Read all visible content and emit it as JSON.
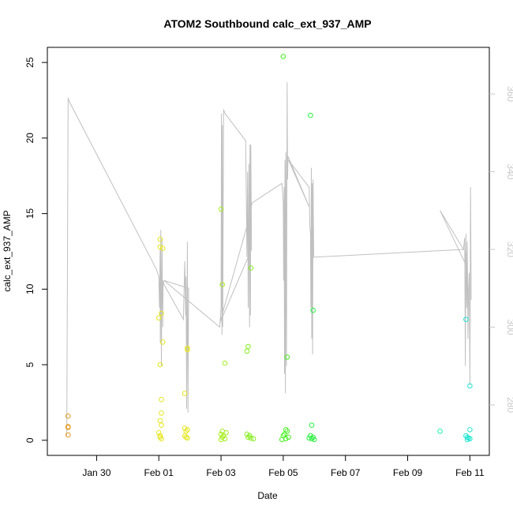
{
  "chart_data": {
    "type": "scatter",
    "title": "ATOM2 Southbound calc_ext_937_AMP",
    "xlabel": "Date",
    "ylabel": "calc_ext_937_AMP",
    "x_ticks": [
      "Jan 30",
      "Feb 01",
      "Feb 03",
      "Feb 05",
      "Feb 07",
      "Feb 09",
      "Feb 11"
    ],
    "x_tick_dates": [
      "2023-01-30",
      "2023-02-01",
      "2023-02-03",
      "2023-02-05",
      "2023-02-07",
      "2023-02-09",
      "2023-02-11"
    ],
    "xlim": [
      "2023-01-28 10:00",
      "2023-02-11 15:00"
    ],
    "ylim": [
      -1,
      26
    ],
    "y_ticks": [
      0,
      5,
      10,
      15,
      20,
      25
    ],
    "y2_ticks": [
      280,
      300,
      320,
      340,
      360
    ],
    "y2lim": [
      267,
      372
    ],
    "grid": false,
    "points": [
      {
        "x": "2023-01-29 02:00",
        "y": 1.6,
        "color": "#e69a1e"
      },
      {
        "x": "2023-01-29 02:00",
        "y": 0.9,
        "color": "#e69a1e"
      },
      {
        "x": "2023-01-29 02:00",
        "y": 0.85,
        "color": "#e69a1e"
      },
      {
        "x": "2023-01-29 02:00",
        "y": 0.35,
        "color": "#e69a1e"
      },
      {
        "x": "2023-02-01 00:00",
        "y": 8.1,
        "color": "#e6e61e"
      },
      {
        "x": "2023-02-01 01:00",
        "y": 13.3,
        "color": "#e6e61e"
      },
      {
        "x": "2023-02-01 01:00",
        "y": 12.8,
        "color": "#e6e61e"
      },
      {
        "x": "2023-02-01 02:00",
        "y": 8.4,
        "color": "#e6e61e"
      },
      {
        "x": "2023-02-01 03:00",
        "y": 12.7,
        "color": "#e6e61e"
      },
      {
        "x": "2023-02-01 03:00",
        "y": 6.5,
        "color": "#e6e61e"
      },
      {
        "x": "2023-02-01 01:00",
        "y": 5.0,
        "color": "#e6e61e"
      },
      {
        "x": "2023-02-01 02:00",
        "y": 2.7,
        "color": "#e6e61e"
      },
      {
        "x": "2023-02-01 02:00",
        "y": 1.8,
        "color": "#e6e61e"
      },
      {
        "x": "2023-02-01 01:00",
        "y": 1.3,
        "color": "#e6e61e"
      },
      {
        "x": "2023-02-01 02:00",
        "y": 1.0,
        "color": "#e6e61e"
      },
      {
        "x": "2023-02-01 00:00",
        "y": 0.5,
        "color": "#e6e61e"
      },
      {
        "x": "2023-02-01 01:00",
        "y": 0.3,
        "color": "#e6e61e"
      },
      {
        "x": "2023-02-01 01:00",
        "y": 0.2,
        "color": "#e6e61e"
      },
      {
        "x": "2023-02-01 02:00",
        "y": 0.1,
        "color": "#e6e61e"
      },
      {
        "x": "2023-02-01 20:00",
        "y": 3.1,
        "color": "#e6e61e"
      },
      {
        "x": "2023-02-01 22:00",
        "y": 6.0,
        "color": "#e6e61e"
      },
      {
        "x": "2023-02-01 22:00",
        "y": 6.1,
        "color": "#e6e61e"
      },
      {
        "x": "2023-02-01 20:00",
        "y": 0.8,
        "color": "#e6e61e"
      },
      {
        "x": "2023-02-01 21:00",
        "y": 0.6,
        "color": "#e6e61e"
      },
      {
        "x": "2023-02-01 22:00",
        "y": 0.7,
        "color": "#e6e61e"
      },
      {
        "x": "2023-02-01 20:00",
        "y": 0.3,
        "color": "#e6e61e"
      },
      {
        "x": "2023-02-01 21:00",
        "y": 0.2,
        "color": "#e6e61e"
      },
      {
        "x": "2023-02-01 22:00",
        "y": 0.15,
        "color": "#e6e61e"
      },
      {
        "x": "2023-02-03 00:00",
        "y": 15.3,
        "color": "#a6ee1e"
      },
      {
        "x": "2023-02-03 01:00",
        "y": 10.3,
        "color": "#a6ee1e"
      },
      {
        "x": "2023-02-03 03:00",
        "y": 5.1,
        "color": "#a6ee1e"
      },
      {
        "x": "2023-02-03 01:00",
        "y": 0.6,
        "color": "#a6ee1e"
      },
      {
        "x": "2023-02-03 04:00",
        "y": 0.5,
        "color": "#a6ee1e"
      },
      {
        "x": "2023-02-03 00:00",
        "y": 0.4,
        "color": "#a6ee1e"
      },
      {
        "x": "2023-02-03 02:00",
        "y": 0.3,
        "color": "#a6ee1e"
      },
      {
        "x": "2023-02-03 01:00",
        "y": 0.2,
        "color": "#a6ee1e"
      },
      {
        "x": "2023-02-03 03:00",
        "y": 0.1,
        "color": "#a6ee1e"
      },
      {
        "x": "2023-02-03 00:00",
        "y": 0.05,
        "color": "#a6ee1e"
      },
      {
        "x": "2023-02-03 20:00",
        "y": 5.9,
        "color": "#86ee1e"
      },
      {
        "x": "2023-02-03 21:00",
        "y": 6.2,
        "color": "#86ee1e"
      },
      {
        "x": "2023-02-03 23:00",
        "y": 11.4,
        "color": "#86ee1e"
      },
      {
        "x": "2023-02-03 20:00",
        "y": 0.4,
        "color": "#86ee1e"
      },
      {
        "x": "2023-02-03 22:00",
        "y": 0.3,
        "color": "#86ee1e"
      },
      {
        "x": "2023-02-03 21:00",
        "y": 0.2,
        "color": "#86ee1e"
      },
      {
        "x": "2023-02-03 23:00",
        "y": 0.15,
        "color": "#86ee1e"
      },
      {
        "x": "2023-02-04 01:00",
        "y": 0.1,
        "color": "#86ee1e"
      },
      {
        "x": "2023-02-05 00:00",
        "y": 25.4,
        "color": "#46f01e"
      },
      {
        "x": "2023-02-05 03:00",
        "y": 5.5,
        "color": "#46f01e"
      },
      {
        "x": "2023-02-05 02:00",
        "y": 0.7,
        "color": "#46f01e"
      },
      {
        "x": "2023-02-05 03:00",
        "y": 0.6,
        "color": "#46f01e"
      },
      {
        "x": "2023-02-05 01:00",
        "y": 0.4,
        "color": "#46f01e"
      },
      {
        "x": "2023-02-05 00:00",
        "y": 0.3,
        "color": "#46f01e"
      },
      {
        "x": "2023-02-05 04:00",
        "y": 0.2,
        "color": "#46f01e"
      },
      {
        "x": "2023-02-05 02:00",
        "y": 0.1,
        "color": "#46f01e"
      },
      {
        "x": "2023-02-04 23:00",
        "y": 0.05,
        "color": "#46f01e"
      },
      {
        "x": "2023-02-05 21:00",
        "y": 21.5,
        "color": "#26f03e"
      },
      {
        "x": "2023-02-05 23:00",
        "y": 8.6,
        "color": "#26f03e"
      },
      {
        "x": "2023-02-05 22:00",
        "y": 1.0,
        "color": "#26f03e"
      },
      {
        "x": "2023-02-05 21:00",
        "y": 0.3,
        "color": "#26f03e"
      },
      {
        "x": "2023-02-05 23:00",
        "y": 0.2,
        "color": "#26f03e"
      },
      {
        "x": "2023-02-05 20:00",
        "y": 0.15,
        "color": "#26f03e"
      },
      {
        "x": "2023-02-05 22:00",
        "y": 0.1,
        "color": "#26f03e"
      },
      {
        "x": "2023-02-06 00:00",
        "y": 0.05,
        "color": "#26f03e"
      },
      {
        "x": "2023-02-10 01:00",
        "y": 0.6,
        "color": "#1ef0a6"
      },
      {
        "x": "2023-02-10 21:00",
        "y": 8.0,
        "color": "#1ee6d0"
      },
      {
        "x": "2023-02-11 00:00",
        "y": 3.6,
        "color": "#1ee6d0"
      },
      {
        "x": "2023-02-11 00:00",
        "y": 0.7,
        "color": "#1ee6d0"
      },
      {
        "x": "2023-02-10 21:00",
        "y": 0.3,
        "color": "#1ee6d0"
      },
      {
        "x": "2023-02-10 22:00",
        "y": 0.2,
        "color": "#1ee6d0"
      },
      {
        "x": "2023-02-10 23:00",
        "y": 0.15,
        "color": "#1ee6d0"
      },
      {
        "x": "2023-02-11 00:00",
        "y": 0.1,
        "color": "#1ee6d0"
      },
      {
        "x": "2023-02-10 22:00",
        "y": 0.05,
        "color": "#1ee6d0"
      }
    ],
    "secondary_line": {
      "color": "#c0c0c0",
      "axis": "right",
      "points": [
        [
          "2023-01-29 01:00",
          272
        ],
        [
          "2023-01-29 02:00",
          359
        ],
        [
          "2023-01-29 03:00",
          358
        ],
        [
          "2023-01-31 22:00",
          315
        ],
        [
          "2023-02-01 00:00",
          313
        ],
        [
          "2023-02-01 00:30",
          305
        ],
        [
          "2023-02-01 01:00",
          320
        ],
        [
          "2023-02-01 01:10",
          296
        ],
        [
          "2023-02-01 01:30",
          325
        ],
        [
          "2023-02-01 02:00",
          290
        ],
        [
          "2023-02-01 02:30",
          323
        ],
        [
          "2023-02-01 03:00",
          300
        ],
        [
          "2023-02-01 03:20",
          312
        ],
        [
          "2023-02-01 04:00",
          311
        ],
        [
          "2023-02-01 19:00",
          302
        ],
        [
          "2023-02-01 20:00",
          317
        ],
        [
          "2023-02-01 20:40",
          303
        ],
        [
          "2023-02-01 21:00",
          313
        ],
        [
          "2023-02-01 21:30",
          279
        ],
        [
          "2023-02-01 22:00",
          322
        ],
        [
          "2023-02-01 22:30",
          278
        ],
        [
          "2023-02-01 23:00",
          310
        ],
        [
          "2023-02-01 04:00",
          312
        ],
        [
          "2023-02-02 23:00",
          300
        ],
        [
          "2023-02-03 00:00",
          305
        ],
        [
          "2023-02-03 00:20",
          355
        ],
        [
          "2023-02-03 00:40",
          298
        ],
        [
          "2023-02-03 01:00",
          352
        ],
        [
          "2023-02-03 01:20",
          300
        ],
        [
          "2023-02-03 02:00",
          356
        ],
        [
          "2023-02-03 03:00",
          355
        ],
        [
          "2023-02-03 19:00",
          348
        ],
        [
          "2023-02-03 20:00",
          318
        ],
        [
          "2023-02-03 20:30",
          340
        ],
        [
          "2023-02-03 21:00",
          305
        ],
        [
          "2023-02-03 21:30",
          342
        ],
        [
          "2023-02-03 22:00",
          300
        ],
        [
          "2023-02-03 22:20",
          347
        ],
        [
          "2023-02-03 22:40",
          303
        ],
        [
          "2023-02-03 23:00",
          347
        ],
        [
          "2023-02-03 23:30",
          320
        ],
        [
          "2023-02-02 23:00",
          301
        ],
        [
          "2023-02-03 20:00",
          326
        ],
        [
          "2023-02-04 00:00",
          332
        ],
        [
          "2023-02-04 23:00",
          337
        ],
        [
          "2023-02-05 00:00",
          332
        ],
        [
          "2023-02-05 00:20",
          312
        ],
        [
          "2023-02-05 00:40",
          336
        ],
        [
          "2023-02-05 01:00",
          288
        ],
        [
          "2023-02-05 01:20",
          343
        ],
        [
          "2023-02-05 01:40",
          283
        ],
        [
          "2023-02-05 02:00",
          345
        ],
        [
          "2023-02-05 02:30",
          290
        ],
        [
          "2023-02-05 03:00",
          363
        ],
        [
          "2023-02-05 03:20",
          338
        ],
        [
          "2023-02-05 03:40",
          344
        ],
        [
          "2023-02-05 20:00",
          331
        ],
        [
          "2023-02-05 04:00",
          343
        ],
        [
          "2023-02-05 20:00",
          336
        ],
        [
          "2023-02-05 20:30",
          326
        ],
        [
          "2023-02-05 21:00",
          324
        ],
        [
          "2023-02-05 21:20",
          305
        ],
        [
          "2023-02-05 21:40",
          341
        ],
        [
          "2023-02-05 22:00",
          297
        ],
        [
          "2023-02-05 22:20",
          337
        ],
        [
          "2023-02-05 22:40",
          293
        ],
        [
          "2023-02-05 23:00",
          338
        ],
        [
          "2023-02-05 23:30",
          318
        ],
        [
          "2023-02-10 20:00",
          320
        ],
        [
          "2023-02-10 21:00",
          316
        ],
        [
          "2023-02-10 01:00",
          330
        ],
        [
          "2023-02-10 19:00",
          320
        ],
        [
          "2023-02-10 20:00",
          323
        ],
        [
          "2023-02-10 20:30",
          290
        ],
        [
          "2023-02-10 21:00",
          324
        ],
        [
          "2023-02-10 21:30",
          305
        ],
        [
          "2023-02-10 22:00",
          322
        ],
        [
          "2023-02-10 22:30",
          297
        ],
        [
          "2023-02-10 23:00",
          310
        ],
        [
          "2023-02-10 23:30",
          314
        ],
        [
          "2023-02-11 00:00",
          285
        ],
        [
          "2023-02-11 00:30",
          336
        ],
        [
          "2023-02-11 01:00",
          307
        ]
      ]
    }
  }
}
